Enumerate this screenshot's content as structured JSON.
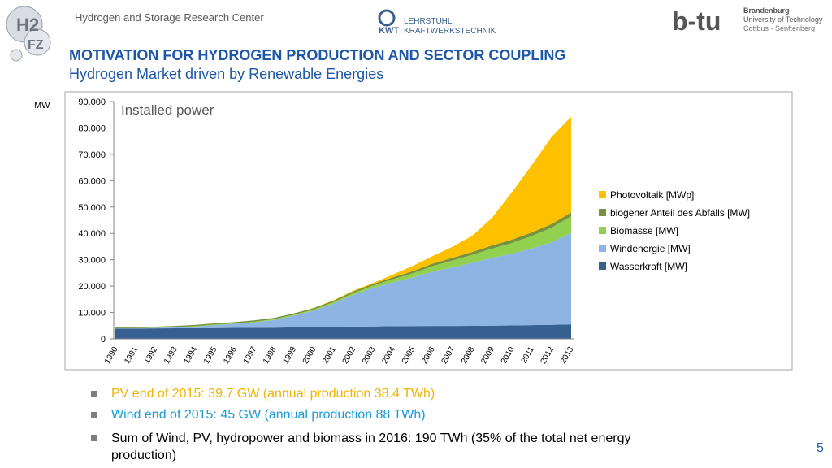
{
  "header": {
    "center": "Hydrogen and Storage Research Center"
  },
  "logos": {
    "h2": "H2",
    "fz": "FZ",
    "kwt": "KWT",
    "lehrstuhl": "LEHRSTUHL",
    "kraftwerkstechnik": "KRAFTWERKSTECHNIK",
    "btu": "b-tu",
    "brandenburg": "Brandenburg",
    "university": "University of Technology",
    "cottbus": "Cottbus - Senftenberg"
  },
  "chart_data": {
    "type": "stacked_area",
    "title": "MOTIVATION FOR HYDROGEN PRODUCTION AND SECTOR COUPLING",
    "subtitle": "Hydrogen Market driven by Renewable Energies",
    "y_label": "MW",
    "annotation": "Installed power",
    "categories": [
      "1990",
      "1991",
      "1992",
      "1993",
      "1994",
      "1995",
      "1996",
      "1997",
      "1998",
      "1999",
      "2000",
      "2001",
      "2002",
      "2003",
      "2004",
      "2005",
      "2006",
      "2007",
      "2008",
      "2009",
      "2010",
      "2011",
      "2012",
      "2013"
    ],
    "series": [
      {
        "name": "Wasserkraft [MW]",
        "color": "#376092",
        "values": [
          3900,
          3900,
          3950,
          4000,
          4050,
          4100,
          4150,
          4200,
          4250,
          4350,
          4550,
          4600,
          4650,
          4700,
          4800,
          4850,
          4900,
          4900,
          4950,
          5000,
          5100,
          5200,
          5300,
          5500
        ]
      },
      {
        "name": "Windenergie [MW]",
        "color": "#8eb4e3",
        "values": [
          60,
          100,
          180,
          330,
          620,
          1120,
          1550,
          2080,
          2880,
          4440,
          6100,
          8750,
          12000,
          14600,
          16600,
          18400,
          20600,
          22200,
          23900,
          25700,
          27200,
          29100,
          31300,
          34700
        ]
      },
      {
        "name": "Biomasse [MW]",
        "color": "#92d050",
        "values": [
          100,
          100,
          100,
          150,
          150,
          200,
          200,
          250,
          300,
          350,
          450,
          550,
          700,
          900,
          1200,
          1600,
          2100,
          2600,
          3000,
          3500,
          4000,
          4700,
          5500,
          6300
        ]
      },
      {
        "name": "biogener Anteil des Abfalls [MW]",
        "color": "#77933c",
        "values": [
          400,
          400,
          400,
          400,
          450,
          450,
          450,
          500,
          500,
          500,
          550,
          550,
          600,
          600,
          700,
          800,
          900,
          1000,
          1100,
          1200,
          1300,
          1350,
          1400,
          1450
        ]
      },
      {
        "name": "Photovoltaik [MWp]",
        "color": "#ffc000",
        "values": [
          0,
          0,
          0,
          0,
          0,
          0,
          0,
          0,
          0,
          0,
          100,
          200,
          300,
          400,
          1100,
          2000,
          2900,
          4200,
          6100,
          10500,
          17900,
          25400,
          33000,
          36300
        ]
      }
    ],
    "ylim": [
      0,
      90000
    ],
    "yticks": [
      0,
      {
        "value": 10000,
        "label": "10.000"
      },
      {
        "value": 20000,
        "label": "20.000"
      },
      {
        "value": 30000,
        "label": "30.000"
      },
      {
        "value": 40000,
        "label": "40.000"
      },
      {
        "value": 50000,
        "label": "50.000"
      },
      {
        "value": 60000,
        "label": "60.000"
      },
      {
        "value": 70000,
        "label": "70.000"
      },
      {
        "value": 80000,
        "label": "80.000"
      },
      {
        "value": 90000,
        "label": "90.000"
      }
    ],
    "legend": "right"
  },
  "bullets": [
    "PV end of 2015: 39.7 GW  (annual production 38.4 TWh)",
    "Wind end of 2015: 45 GW (annual production 88 TWh)",
    "Sum of Wind, PV, hydropower and biomass in 2016: 190 TWh (35% of the total net energy production)"
  ],
  "page_number": "5"
}
